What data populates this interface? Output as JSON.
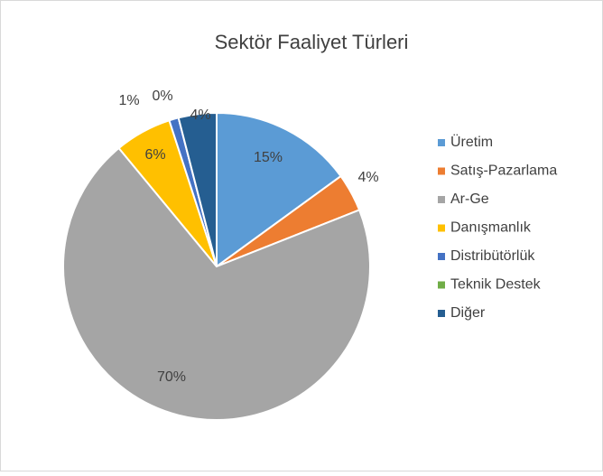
{
  "chart_data": {
    "type": "pie",
    "title": "Sektör Faaliyet Türleri",
    "categories": [
      "Üretim",
      "Satış-Pazarlama",
      "Ar-Ge",
      "Danışmanlık",
      "Distribütörlük",
      "Teknik Destek",
      "Diğer"
    ],
    "values": [
      15,
      4,
      70,
      6,
      1,
      0,
      4
    ],
    "value_labels": [
      "15%",
      "4%",
      "70%",
      "6%",
      "1%",
      "0%",
      "4%"
    ],
    "colors": [
      "#5b9bd5",
      "#ed7d31",
      "#a5a5a5",
      "#ffc000",
      "#4472c4",
      "#70ad47",
      "#255e91"
    ],
    "legend": "right"
  }
}
